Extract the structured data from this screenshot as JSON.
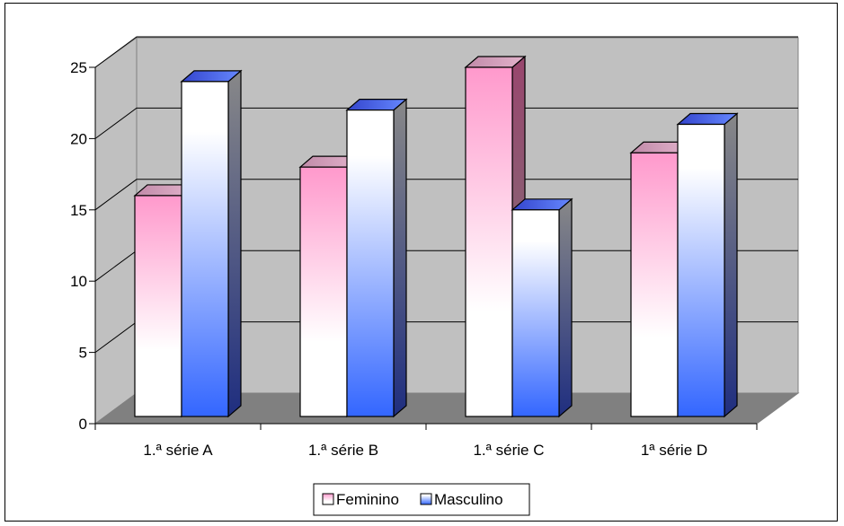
{
  "chart_data": {
    "type": "bar",
    "categories": [
      "1.ª série A",
      "1.ª série B",
      "1.ª série C",
      "1ª série  D"
    ],
    "series": [
      {
        "name": "Feminino",
        "values": [
          16,
          18,
          25,
          19
        ]
      },
      {
        "name": "Masculino",
        "values": [
          24,
          22,
          15,
          21
        ]
      }
    ],
    "y_ticks": [
      "0",
      "5",
      "10",
      "15",
      "20",
      "25"
    ],
    "ylim": [
      0,
      25
    ],
    "grid": true,
    "legend_position": "bottom",
    "colors": {
      "wall": "#c0c0c0",
      "floor": "#808080",
      "feminino_top": "#ff99cc",
      "feminino_bottom": "#ffffff",
      "masculino_top": "#ffffff",
      "masculino_bottom": "#3366ff",
      "feminino_side": "#99466e",
      "masculino_side": "#1f2e80"
    }
  }
}
